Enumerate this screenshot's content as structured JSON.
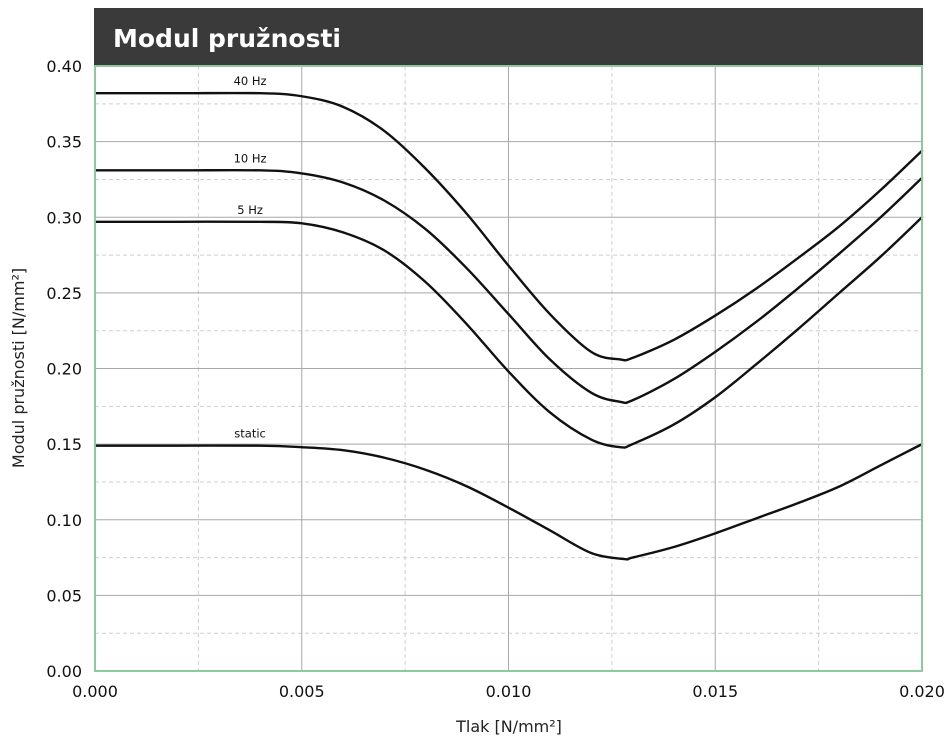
{
  "chart_data": {
    "type": "line",
    "title": "Modul pružnosti",
    "xlabel": "Tlak [N/mm²]",
    "ylabel": "Modul pružnosti [N/mm²]",
    "xlim": [
      0,
      0.02
    ],
    "ylim": [
      0,
      0.4
    ],
    "x_ticks": [
      "0.000",
      "0.005",
      "0.010",
      "0.015",
      "0.020"
    ],
    "y_ticks": [
      "0.00",
      "0.05",
      "0.10",
      "0.15",
      "0.20",
      "0.25",
      "0.30",
      "0.35",
      "0.40"
    ],
    "grid": true,
    "legend": "inline labels above curves",
    "series": [
      {
        "name": "40 Hz",
        "x": [
          0,
          0.002,
          0.004,
          0.005,
          0.006,
          0.007,
          0.008,
          0.009,
          0.01,
          0.011,
          0.012,
          0.0127,
          0.013,
          0.014,
          0.015,
          0.016,
          0.017,
          0.018,
          0.019,
          0.02
        ],
        "y": [
          0.382,
          0.382,
          0.382,
          0.38,
          0.373,
          0.357,
          0.332,
          0.302,
          0.268,
          0.236,
          0.211,
          0.206,
          0.207,
          0.219,
          0.235,
          0.253,
          0.273,
          0.294,
          0.318,
          0.344
        ]
      },
      {
        "name": "10 Hz",
        "x": [
          0,
          0.002,
          0.004,
          0.005,
          0.006,
          0.007,
          0.008,
          0.009,
          0.01,
          0.011,
          0.012,
          0.0127,
          0.013,
          0.014,
          0.015,
          0.016,
          0.017,
          0.018,
          0.019,
          0.02
        ],
        "y": [
          0.331,
          0.331,
          0.331,
          0.329,
          0.323,
          0.311,
          0.292,
          0.266,
          0.236,
          0.206,
          0.184,
          0.178,
          0.179,
          0.193,
          0.211,
          0.231,
          0.253,
          0.276,
          0.3,
          0.326
        ]
      },
      {
        "name": "5 Hz",
        "x": [
          0,
          0.002,
          0.004,
          0.005,
          0.006,
          0.007,
          0.008,
          0.009,
          0.01,
          0.011,
          0.012,
          0.0127,
          0.013,
          0.014,
          0.015,
          0.016,
          0.017,
          0.018,
          0.019,
          0.02
        ],
        "y": [
          0.297,
          0.297,
          0.297,
          0.296,
          0.29,
          0.278,
          0.257,
          0.229,
          0.198,
          0.171,
          0.153,
          0.148,
          0.15,
          0.163,
          0.181,
          0.203,
          0.226,
          0.25,
          0.274,
          0.3
        ]
      },
      {
        "name": "static",
        "x": [
          0,
          0.002,
          0.004,
          0.005,
          0.006,
          0.007,
          0.008,
          0.009,
          0.01,
          0.011,
          0.012,
          0.0128,
          0.013,
          0.014,
          0.015,
          0.016,
          0.017,
          0.018,
          0.019,
          0.02
        ],
        "y": [
          0.149,
          0.149,
          0.149,
          0.148,
          0.146,
          0.141,
          0.133,
          0.122,
          0.108,
          0.093,
          0.078,
          0.074,
          0.075,
          0.082,
          0.091,
          0.101,
          0.111,
          0.122,
          0.136,
          0.15
        ]
      }
    ]
  },
  "colors": {
    "title_bar": "#3a3a3a",
    "plot_border": "#8fc79f",
    "grid_major": "#a8a8a8",
    "grid_minor": "#cfcfcf",
    "curve": "#111111"
  }
}
